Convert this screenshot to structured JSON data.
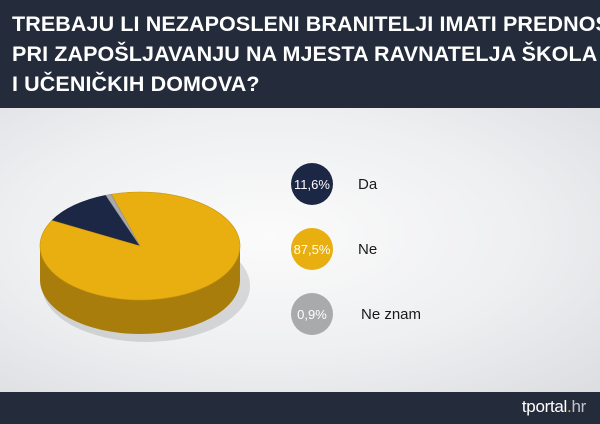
{
  "header": {
    "title_lines": [
      "TREBAJU LI NEZAPOSLENI BRANITELJI IMATI PREDNOST",
      "PRI ZAPOŠLJAVANJU NA MJESTA RAVNATELJA ŠKOLA",
      "I UČENIČKIH DOMOVA?"
    ]
  },
  "chart_data": {
    "type": "pie",
    "style": "3d",
    "slices": [
      {
        "label": "Da",
        "value": 11.6,
        "value_label": "11,6%",
        "color": "#1c2645"
      },
      {
        "label": "Ne",
        "value": 87.5,
        "value_label": "87,5%",
        "color": "#e9ae0f"
      },
      {
        "label": "Ne znam",
        "value": 0.9,
        "value_label": "0,9%",
        "color": "#a9aaab"
      }
    ],
    "legend_placement": "right"
  },
  "footer": {
    "brand": "tportal",
    "brand_dot": ".",
    "brand_tld": "hr"
  }
}
